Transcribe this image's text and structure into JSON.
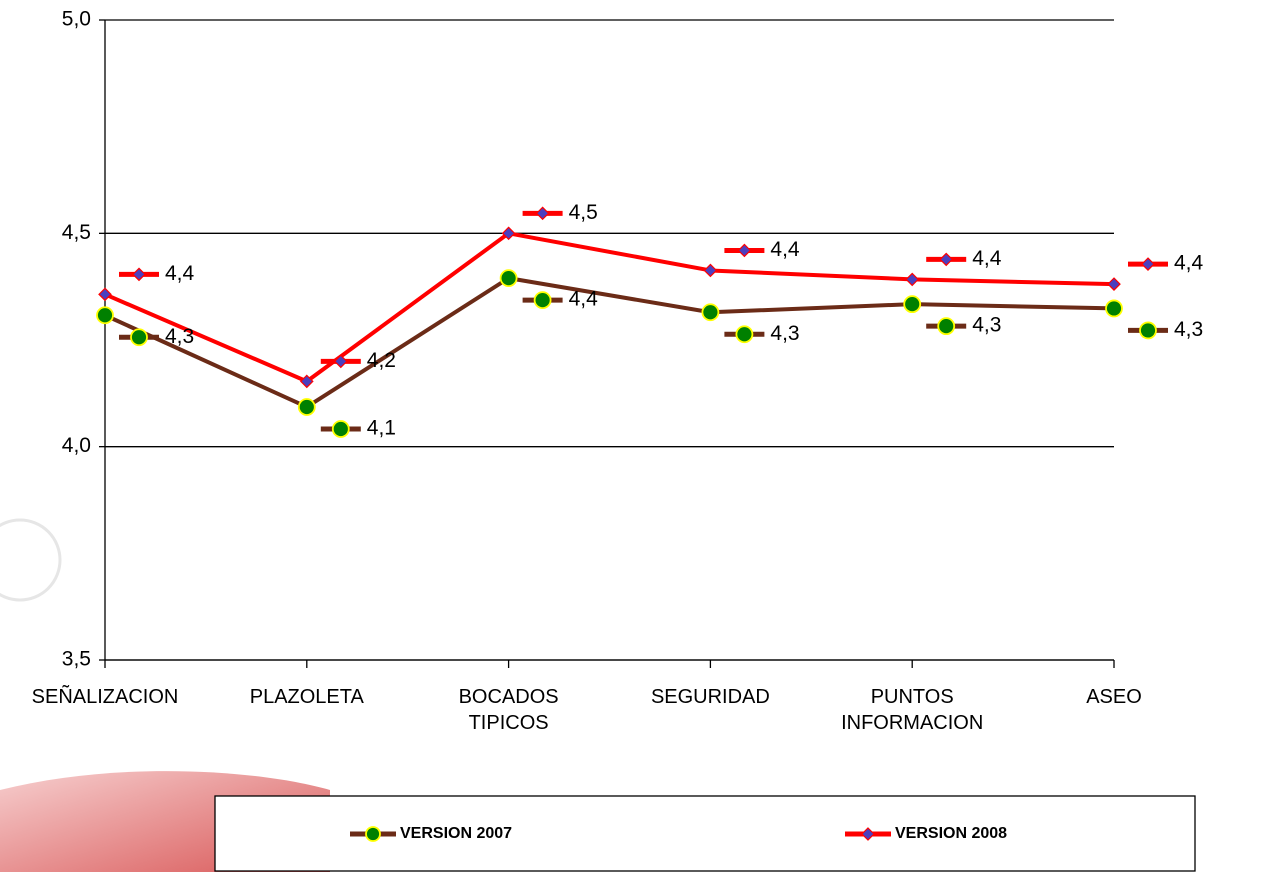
{
  "chart_data": {
    "type": "line",
    "categories": [
      "SEÑALIZACION",
      "PLAZOLETA",
      "BOCADOS TIPICOS",
      "SEGURIDAD",
      "PUNTOS INFORMACION",
      "ASEO"
    ],
    "series": [
      {
        "name": "VERSION 2007",
        "color": "#6b2b17",
        "marker_color": "#008000",
        "marker": "circle",
        "values": [
          4.308,
          4.093,
          4.395,
          4.315,
          4.334,
          4.324
        ],
        "value_labels": [
          "4,3",
          "4,1",
          "4,4",
          "4,3",
          "4,3",
          "4,3"
        ]
      },
      {
        "name": "VERSION 2008",
        "color": "#ff0000",
        "marker_color": "#4b3fbf",
        "marker": "diamond",
        "values": [
          4.357,
          4.153,
          4.5,
          4.413,
          4.392,
          4.381
        ],
        "value_labels": [
          "4,4",
          "4,2",
          "4,5",
          "4,4",
          "4,4",
          "4,4"
        ]
      }
    ],
    "ylim": [
      3.5,
      5.0
    ],
    "yticks": [
      {
        "value": 3.5,
        "label": "3,5"
      },
      {
        "value": 4.0,
        "label": "4,0"
      },
      {
        "value": 4.5,
        "label": "4,5"
      },
      {
        "value": 5.0,
        "label": "5,0"
      }
    ],
    "grid": true,
    "legend": "bottom"
  }
}
